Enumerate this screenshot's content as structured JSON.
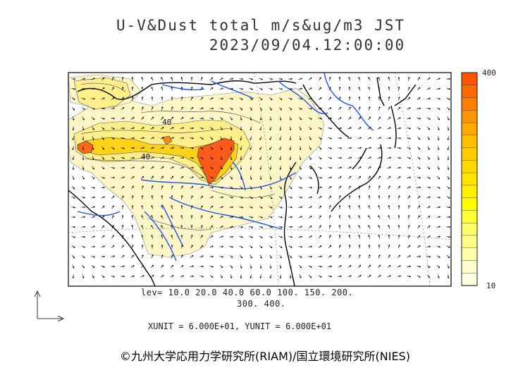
{
  "title_line1": "U-V&Dust total m/s&ug/m3 JST",
  "title_line2": "2023/09/04.12:00:00",
  "colorbar": {
    "max_label": "400",
    "min_label": "10",
    "colors": [
      "#ff5500",
      "#ff6a00",
      "#ff8000",
      "#ff9500",
      "#ffaa00",
      "#ffbf00",
      "#ffcc00",
      "#ffd800",
      "#ffe500",
      "#fff000",
      "#ffff00",
      "#ffff33",
      "#ffff66",
      "#ffff88",
      "#ffffaa",
      "#ffffcc",
      "#ffffe5"
    ]
  },
  "contour_label": "40",
  "levels_line1": "lev= 10.0 20.0 40.0 60.0 100. 150. 200.",
  "levels_line2": "300. 400.",
  "units_text": "XUNIT = 6.000E+01, YUNIT = 6.000E+01",
  "credit": "©九州大学応用力学研究所(RIAM)/国立環境研究所(NIES)"
}
